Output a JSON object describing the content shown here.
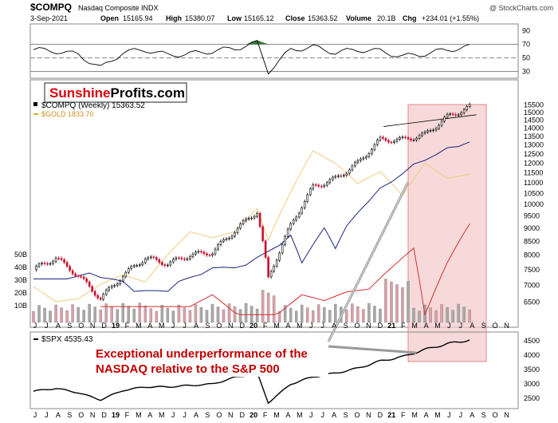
{
  "header": {
    "symbol": "$COMPQ",
    "name": "Nasdaq Composite INDX",
    "credit": "@ StockCharts.com",
    "date": "3-Sep-2021",
    "open_label": "Open",
    "open": "15165.94",
    "high_label": "High",
    "high": "15380.07",
    "low_label": "Low",
    "low": "15165.12",
    "close_label": "Close",
    "close": "15363.52",
    "volume_label": "Volume",
    "volume": "20.1B",
    "chg_label": "Chg",
    "chg": "+234.01 (+1.55%)"
  },
  "watermark": {
    "part1": "Sunshine",
    "part2": "Profits.com"
  },
  "legend": {
    "compq": "$COMPQ (Weekly) 15363.52",
    "gold": "$GOLD 1833.70",
    "spx": "$SPX 4535.43"
  },
  "annotation": {
    "line1": "Exceptional underperformance of the",
    "line2": "NASDAQ relative to the S&P 500"
  },
  "colors": {
    "price_up": "#000000",
    "price_down": "#c8102e",
    "gold": "#f0c878",
    "ma_long": "#1a237e",
    "ma_longer": "#d32f2f",
    "volume_up": "#a8a8a8",
    "volume_down": "#d8a0a8",
    "highlight": "#f4c9c9",
    "annotation_text": "#c00000",
    "rsi_fill": "#3c7a3c",
    "watermark_red": "#d8000c"
  },
  "chart_data": [
    {
      "type": "line",
      "title": "RSI",
      "yticks": [
        90,
        70,
        50,
        30
      ],
      "ylim": [
        20,
        100
      ],
      "reference_lines": [
        70,
        50,
        30
      ],
      "x": [
        "2018-06",
        "2018-08",
        "2018-10",
        "2018-12",
        "2019-02",
        "2019-04",
        "2019-06",
        "2019-08",
        "2019-10",
        "2019-12",
        "2020-02",
        "2020-03",
        "2020-05",
        "2020-07",
        "2020-09",
        "2020-11",
        "2021-01",
        "2021-03",
        "2021-05",
        "2021-07",
        "2021-09"
      ],
      "values": [
        62,
        60,
        55,
        35,
        58,
        62,
        54,
        56,
        60,
        64,
        72,
        30,
        62,
        66,
        58,
        62,
        60,
        52,
        56,
        62,
        66
      ]
    },
    {
      "type": "candlestick",
      "title": "$COMPQ (Weekly) 15363.52",
      "scale": "log",
      "ylim": [
        6200,
        15700
      ],
      "yticks": [
        6500,
        7000,
        7500,
        8000,
        8500,
        9000,
        9500,
        10000,
        10500,
        11000,
        11500,
        12000,
        12500,
        13000,
        13500,
        14000,
        14500,
        15000,
        15500
      ],
      "volume_ticks": [
        "50B",
        "40B",
        "30B",
        "20B",
        "10B"
      ],
      "x_tick_labels": [
        "J",
        "J",
        "A",
        "S",
        "O",
        "N",
        "D",
        "19",
        "F",
        "M",
        "A",
        "M",
        "J",
        "J",
        "A",
        "S",
        "O",
        "N",
        "D",
        "20",
        "F",
        "M",
        "A",
        "M",
        "J",
        "J",
        "A",
        "S",
        "O",
        "N",
        "D",
        "21",
        "F",
        "M",
        "A",
        "M",
        "J",
        "J",
        "A",
        "S",
        "O",
        "N"
      ],
      "x": [
        "2018-06",
        "2018-08",
        "2018-10",
        "2018-12",
        "2019-02",
        "2019-04",
        "2019-06",
        "2019-08",
        "2019-10",
        "2019-12",
        "2020-02",
        "2020-03",
        "2020-05",
        "2020-07",
        "2020-09",
        "2020-11",
        "2021-01",
        "2021-03",
        "2021-05",
        "2021-07",
        "2021-09"
      ],
      "series": [
        {
          "name": "$COMPQ",
          "values": [
            7500,
            7900,
            7300,
            6600,
            7300,
            7900,
            7700,
            8000,
            8100,
            8900,
            9700,
            7200,
            9100,
            10800,
            11200,
            12000,
            13300,
            13300,
            13600,
            14700,
            15363
          ]
        },
        {
          "name": "$GOLD",
          "values": [
            1270,
            1210,
            1220,
            1280,
            1320,
            1290,
            1410,
            1520,
            1490,
            1520,
            1640,
            1480,
            1730,
            1980,
            1900,
            1780,
            1850,
            1710,
            1900,
            1810,
            1834
          ]
        }
      ]
    },
    {
      "type": "line",
      "title": "$SPX 4535.43",
      "yticks": [
        4500,
        4000,
        3500,
        3000,
        2500
      ],
      "ylim": [
        2200,
        4700
      ],
      "x": [
        "2018-06",
        "2018-08",
        "2018-10",
        "2018-12",
        "2019-02",
        "2019-04",
        "2019-06",
        "2019-08",
        "2019-10",
        "2019-12",
        "2020-02",
        "2020-03",
        "2020-05",
        "2020-07",
        "2020-09",
        "2020-11",
        "2021-01",
        "2021-03",
        "2021-05",
        "2021-07",
        "2021-09"
      ],
      "values": [
        2750,
        2850,
        2700,
        2450,
        2780,
        2900,
        2900,
        2950,
        3000,
        3230,
        3380,
        2350,
        3000,
        3250,
        3380,
        3550,
        3800,
        3950,
        4200,
        4400,
        4535
      ]
    }
  ]
}
